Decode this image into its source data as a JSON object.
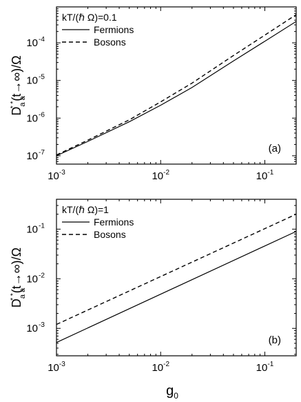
{
  "chart_data": [
    {
      "type": "line",
      "panel_label": "(a)",
      "ylabel": {
        "main": "D",
        "sub": "a a",
        "sup": "* *",
        "tail": "(t→∞)/Ω"
      },
      "xscale": "log",
      "yscale": "log",
      "xlim": [
        0.001,
        0.2
      ],
      "ylim": [
        6e-08,
        0.0009
      ],
      "xticks": [
        {
          "value": 0.001,
          "label": "10",
          "exp": "-3"
        },
        {
          "value": 0.01,
          "label": "10",
          "exp": "-2"
        },
        {
          "value": 0.1,
          "label": "10",
          "exp": "-1"
        }
      ],
      "yticks": [
        {
          "value": 1e-07,
          "label": "10",
          "exp": "-7"
        },
        {
          "value": 1e-06,
          "label": "10",
          "exp": "-6"
        },
        {
          "value": 1e-05,
          "label": "10",
          "exp": "-5"
        },
        {
          "value": 0.0001,
          "label": "10",
          "exp": "-4"
        }
      ],
      "legend": {
        "title": "kT/(ℏ Ω)=0.1",
        "placement": "top-left"
      },
      "series": [
        {
          "name": "Fermions",
          "style": "solid",
          "x": [
            0.001,
            0.002,
            0.005,
            0.01,
            0.02,
            0.05,
            0.1,
            0.2
          ],
          "y": [
            1e-07,
            2.4e-07,
            8e-07,
            2.2e-06,
            6.5e-06,
            3.3e-05,
            0.00011,
            0.00037
          ]
        },
        {
          "name": "Bosons",
          "style": "dashed",
          "x": [
            0.001,
            0.002,
            0.005,
            0.01,
            0.02,
            0.05,
            0.1,
            0.2
          ],
          "y": [
            1.05e-07,
            2.6e-07,
            9e-07,
            2.7e-06,
            8.5e-06,
            4.6e-05,
            0.00016,
            0.00056
          ]
        }
      ]
    },
    {
      "type": "line",
      "panel_label": "(b)",
      "xlabel": {
        "main": "g",
        "sub": "0"
      },
      "ylabel": {
        "main": "D",
        "sub": "a a",
        "sup": "* *",
        "tail": "(t→∞)/Ω"
      },
      "xscale": "log",
      "yscale": "log",
      "xlim": [
        0.001,
        0.2
      ],
      "ylim": [
        0.00028,
        0.4
      ],
      "xticks": [
        {
          "value": 0.001,
          "label": "10",
          "exp": "-3"
        },
        {
          "value": 0.01,
          "label": "10",
          "exp": "-2"
        },
        {
          "value": 0.1,
          "label": "10",
          "exp": "-1"
        }
      ],
      "yticks": [
        {
          "value": 0.001,
          "label": "10",
          "exp": "-3"
        },
        {
          "value": 0.01,
          "label": "10",
          "exp": "-2"
        },
        {
          "value": 0.1,
          "label": "10",
          "exp": "-1"
        }
      ],
      "legend": {
        "title": "kT/(ℏ Ω)=1",
        "placement": "top-left"
      },
      "series": [
        {
          "name": "Fermions",
          "style": "solid",
          "x": [
            0.001,
            0.2
          ],
          "y": [
            0.00052,
            0.09
          ]
        },
        {
          "name": "Bosons",
          "style": "dashed",
          "x": [
            0.001,
            0.2
          ],
          "y": [
            0.0012,
            0.2
          ]
        }
      ]
    }
  ]
}
